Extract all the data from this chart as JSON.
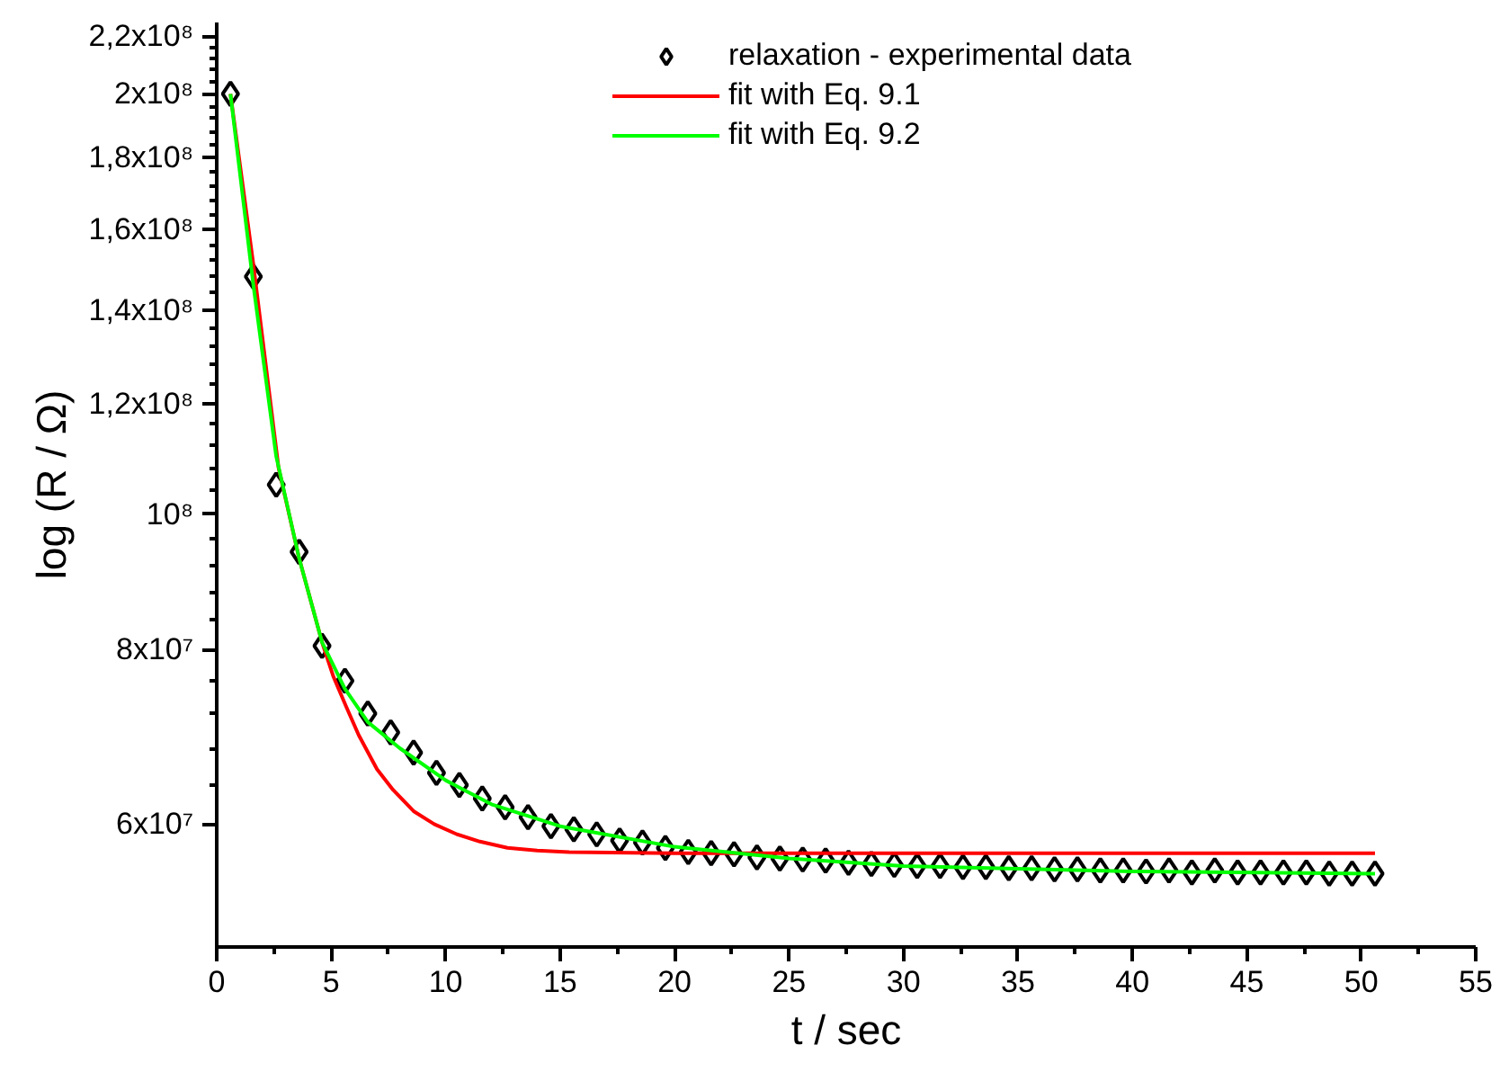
{
  "chart_data": {
    "type": "scatter",
    "xlabel": "t / sec",
    "ylabel": "log (R / Ω)",
    "log": "y",
    "xlim": [
      0,
      55
    ],
    "ylim": [
      49000000.0,
      225000000.0
    ],
    "xticks": [
      0,
      5,
      10,
      15,
      20,
      25,
      30,
      35,
      40,
      45,
      50,
      55
    ],
    "yticks": [
      {
        "value": 60000000.0,
        "label": "6x10⁷"
      },
      {
        "value": 80000000.0,
        "label": "8x10⁷"
      },
      {
        "value": 100000000.0,
        "label": "10⁸"
      },
      {
        "value": 120000000.0,
        "label": "1,2x10⁸"
      },
      {
        "value": 140000000.0,
        "label": "1,4x10⁸"
      },
      {
        "value": 160000000.0,
        "label": "1,6x10⁸"
      },
      {
        "value": 180000000.0,
        "label": "1,8x10⁸"
      },
      {
        "value": 200000000.0,
        "label": "2x10⁸"
      },
      {
        "value": 220000000.0,
        "label": "2,2x10⁸"
      }
    ],
    "grid": false,
    "legend": "top right",
    "series": [
      {
        "name": "relaxation - experimental data",
        "marker": "diamond",
        "color": "#000000",
        "x": [
          0.6,
          1.6,
          2.6,
          3.6,
          4.6,
          5.6,
          6.6,
          7.6,
          8.6,
          9.6,
          10.6,
          11.6,
          12.6,
          13.6,
          14.6,
          15.6,
          16.6,
          17.6,
          18.6,
          19.6,
          20.6,
          21.6,
          22.6,
          23.6,
          24.6,
          25.6,
          26.6,
          27.6,
          28.6,
          29.6,
          30.6,
          31.6,
          32.6,
          33.6,
          34.6,
          35.6,
          36.6,
          37.6,
          38.6,
          39.6,
          40.6,
          41.6,
          42.6,
          43.6,
          44.6,
          45.6,
          46.6,
          47.6,
          48.6,
          49.6,
          50.6
        ],
        "values": [
          200000000.0,
          148000000.0,
          105000000.0,
          94000000.0,
          80500000.0,
          76000000.0,
          72000000.0,
          69800000.0,
          67500000.0,
          65300000.0,
          64000000.0,
          62600000.0,
          61700000.0,
          60700000.0,
          59800000.0,
          59500000.0,
          59000000.0,
          58400000.0,
          58200000.0,
          57700000.0,
          57300000.0,
          57200000.0,
          57100000.0,
          56800000.0,
          56700000.0,
          56600000.0,
          56500000.0,
          56300000.0,
          56200000.0,
          56100000.0,
          56000000.0,
          56000000.0,
          55900000.0,
          55900000.0,
          55800000.0,
          55800000.0,
          55700000.0,
          55700000.0,
          55600000.0,
          55600000.0,
          55500000.0,
          55600000.0,
          55400000.0,
          55600000.0,
          55400000.0,
          55400000.0,
          55400000.0,
          55400000.0,
          55300000.0,
          55300000.0,
          55300000.0
        ]
      },
      {
        "name": "fit with Eq. 9.1",
        "type": "line",
        "color": "#ff0000",
        "x": [
          0.6,
          1.6,
          2.7,
          3.6,
          4.6,
          5.1,
          5.66,
          6.2,
          7.0,
          7.7,
          8.6,
          9.5,
          10.5,
          11.5,
          12.7,
          14,
          15.4,
          20,
          30,
          40,
          50.6
        ],
        "values": [
          200000000.0,
          151000000.0,
          108000000.0,
          93000000.0,
          81000000.0,
          76500000.0,
          72800000.0,
          69500000.0,
          65700000.0,
          63500000.0,
          61300000.0,
          60000000.0,
          59000000.0,
          58300000.0,
          57700000.0,
          57450000.0,
          57300000.0,
          57200000.0,
          57200000.0,
          57200000.0,
          57200000.0
        ]
      },
      {
        "name": "fit with Eq. 9.2",
        "type": "line",
        "color": "#00ff00",
        "x": [
          0.6,
          1.6,
          2.6,
          3.6,
          4.6,
          5.6,
          6.6,
          8,
          10,
          12,
          15,
          20,
          25,
          30,
          40,
          50.6
        ],
        "values": [
          200000000.0,
          146000000.0,
          110000000.0,
          93000000.0,
          81000000.0,
          75000000.0,
          71000000.0,
          68000000.0,
          64500000.0,
          62000000.0,
          59800000.0,
          57800000.0,
          56700000.0,
          56000000.0,
          55500000.0,
          55300000.0
        ]
      }
    ]
  }
}
